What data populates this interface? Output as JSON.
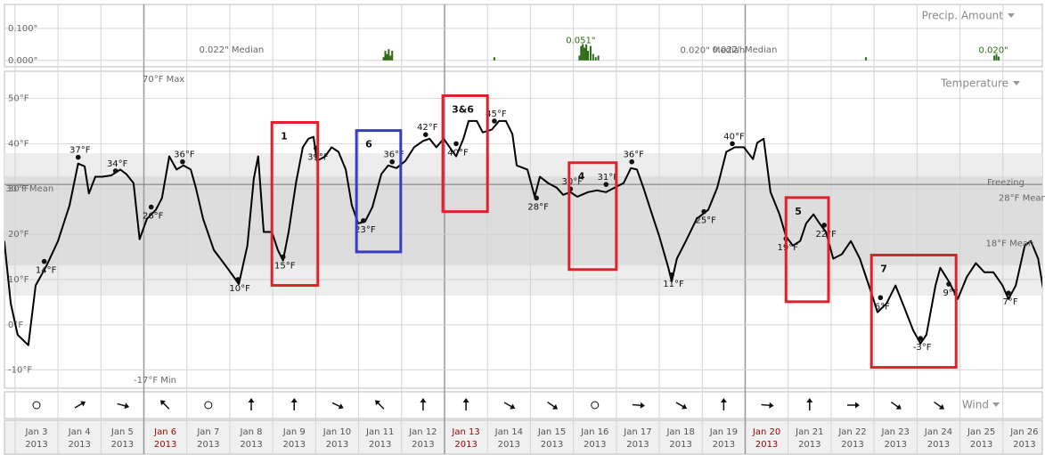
{
  "chart_data": [
    {
      "type": "bar",
      "title": "Precip. Amount",
      "x": [
        11.58,
        11.62,
        11.66,
        11.7,
        11.74,
        11.78,
        14.16,
        16.14,
        16.18,
        16.22,
        16.26,
        16.3,
        16.34,
        16.4,
        16.46,
        16.52,
        16.58,
        22.81,
        25.8,
        25.85,
        25.9
      ],
      "values": [
        0.01,
        0.03,
        0.02,
        0.035,
        0.015,
        0.03,
        0.01,
        0.015,
        0.045,
        0.051,
        0.04,
        0.05,
        0.03,
        0.045,
        0.02,
        0.01,
        0.015,
        0.01,
        0.015,
        0.02,
        0.012
      ],
      "color": "#2d6b12",
      "xlim": [
        2.65,
        26.98
      ],
      "ylim": [
        -0.02,
        0.175
      ],
      "yticks": [
        {
          "value": 0.1,
          "label": "0.100\""
        },
        {
          "value": 0,
          "label": "0.000\""
        }
      ],
      "grid": true,
      "annotations": [
        {
          "x": 8.04,
          "value": 0.022,
          "label": "0.022\" Median"
        },
        {
          "x": 16.17,
          "value": 0.051,
          "label": "0.051\""
        },
        {
          "x": 19.99,
          "value": 0.022,
          "label": "0.022\" Median"
        },
        {
          "x": 19.24,
          "value": 0.02,
          "label": "0.020\" Median"
        },
        {
          "x": 25.78,
          "value": 0.02,
          "label": "0.020\""
        }
      ]
    },
    {
      "type": "line",
      "title": "Temperature",
      "x": [
        2.75,
        2.9,
        3.06,
        3.31,
        3.48,
        3.73,
        4.0,
        4.27,
        4.47,
        4.62,
        4.72,
        4.87,
        5.03,
        5.24,
        5.45,
        5.59,
        5.76,
        5.9,
        6.07,
        6.28,
        6.42,
        6.59,
        6.76,
        6.92,
        7.09,
        7.21,
        7.38,
        7.63,
        7.94,
        8.21,
        8.41,
        8.56,
        8.66,
        8.79,
        8.98,
        9.12,
        9.24,
        9.37,
        9.54,
        9.7,
        9.83,
        9.95,
        10.03,
        10.22,
        10.37,
        10.53,
        10.7,
        10.84,
        10.99,
        11.15,
        11.32,
        11.53,
        11.69,
        11.88,
        12.09,
        12.29,
        12.5,
        12.65,
        12.81,
        12.98,
        13.12,
        13.27,
        13.44,
        13.56,
        13.75,
        13.89,
        14.1,
        14.27,
        14.43,
        14.58,
        14.68,
        14.93,
        15.1,
        15.22,
        15.41,
        15.61,
        15.76,
        15.93,
        16.09,
        16.34,
        16.55,
        16.76,
        16.96,
        17.17,
        17.34,
        17.48,
        17.63,
        17.83,
        18.0,
        18.21,
        18.29,
        18.41,
        18.62,
        18.87,
        19.14,
        19.35,
        19.56,
        19.76,
        19.97,
        20.18,
        20.28,
        20.43,
        20.59,
        20.8,
        20.95,
        21.11,
        21.28,
        21.42,
        21.59,
        21.73,
        21.88,
        22.05,
        22.25,
        22.46,
        22.67,
        22.88,
        23.08,
        23.29,
        23.5,
        23.71,
        23.91,
        24.08,
        24.22,
        24.43,
        24.54,
        24.74,
        24.95,
        25.16,
        25.37,
        25.57,
        25.78,
        25.99,
        26.13,
        26.3,
        26.51,
        26.65,
        26.82,
        26.96
      ],
      "values": [
        18.5,
        4.7,
        -2.2,
        -4.5,
        8.7,
        13,
        18.5,
        26.4,
        35.6,
        35,
        29,
        32.7,
        32.7,
        33,
        34.3,
        33.3,
        31.3,
        18.9,
        23.4,
        25.4,
        28,
        37.2,
        34.3,
        35.2,
        34.3,
        30.3,
        23.4,
        16.5,
        12.6,
        9,
        17.5,
        32.3,
        37.2,
        20.5,
        20.5,
        16.5,
        14.2,
        20.5,
        31.3,
        39.2,
        41.1,
        41.5,
        36.2,
        37.2,
        39.2,
        38.2,
        34.3,
        26.4,
        22.4,
        22.8,
        26,
        33.3,
        35.2,
        34.6,
        36.2,
        39.2,
        40.6,
        41.1,
        39.2,
        41.1,
        39.2,
        37.2,
        41.1,
        45,
        45,
        42.5,
        43.1,
        45,
        45,
        42.1,
        35.2,
        34.3,
        28.3,
        32.7,
        31.3,
        30.3,
        28.7,
        29.3,
        28.3,
        29.3,
        29.7,
        29.3,
        30.3,
        31.3,
        34.6,
        34.3,
        30.3,
        24.4,
        19.5,
        12.6,
        9.6,
        14.6,
        18.5,
        23.4,
        25.4,
        30.3,
        38.2,
        39.2,
        39.2,
        36.6,
        40.2,
        41.1,
        29.3,
        24.4,
        19.5,
        17.5,
        18.5,
        22.4,
        24.4,
        22.4,
        20.5,
        14.6,
        15.6,
        18.5,
        14.6,
        8.7,
        2.8,
        4.7,
        8.7,
        3.7,
        -1.2,
        -4.1,
        -2.2,
        8.7,
        12.6,
        9.6,
        5.7,
        10.6,
        13.6,
        11.6,
        11.6,
        8.7,
        5.7,
        8.7,
        17.5,
        18.5,
        14.6,
        6.7
      ],
      "color": "#000000",
      "xlim": [
        2.65,
        26.98
      ],
      "ylim": [
        -14,
        56
      ],
      "yticks": [
        {
          "value": 50,
          "label": "50°F"
        },
        {
          "value": 40,
          "label": "40°F"
        },
        {
          "value": 30,
          "label": "30°F"
        },
        {
          "value": 20,
          "label": "20°F"
        },
        {
          "value": 10,
          "label": "10°F"
        },
        {
          "value": 0,
          "label": "0°F"
        },
        {
          "value": -10,
          "label": "-10°F"
        }
      ],
      "grid": true,
      "point_labels": [
        {
          "x": 3.68,
          "value": 14,
          "label": "14°F"
        },
        {
          "x": 4.47,
          "value": 37,
          "label": "37°F"
        },
        {
          "x": 5.34,
          "value": 34,
          "label": "34°F"
        },
        {
          "x": 6.17,
          "value": 26,
          "label": "26°F"
        },
        {
          "x": 6.9,
          "value": 36,
          "label": "36°F"
        },
        {
          "x": 8.19,
          "value": 10,
          "label": "10°F"
        },
        {
          "x": 9.24,
          "value": 15,
          "label": "15°F"
        },
        {
          "x": 10.01,
          "value": 39,
          "label": "39°F"
        },
        {
          "x": 11.11,
          "value": 23,
          "label": "23°F"
        },
        {
          "x": 11.78,
          "value": 36,
          "label": "36°F"
        },
        {
          "x": 12.56,
          "value": 42,
          "label": "42°F"
        },
        {
          "x": 13.27,
          "value": 40,
          "label": "40°F"
        },
        {
          "x": 14.16,
          "value": 45,
          "label": "45°F"
        },
        {
          "x": 15.14,
          "value": 28,
          "label": "28°F"
        },
        {
          "x": 15.93,
          "value": 30,
          "label": "30°F"
        },
        {
          "x": 16.76,
          "value": 31,
          "label": "31°F"
        },
        {
          "x": 17.36,
          "value": 36,
          "label": "36°F"
        },
        {
          "x": 18.29,
          "value": 11,
          "label": "11°F"
        },
        {
          "x": 19.04,
          "value": 25,
          "label": "25°F"
        },
        {
          "x": 19.7,
          "value": 40,
          "label": "40°F"
        },
        {
          "x": 20.95,
          "value": 19,
          "label": "19°F"
        },
        {
          "x": 21.84,
          "value": 22,
          "label": "22°F"
        },
        {
          "x": 23.15,
          "value": 6,
          "label": "6°F"
        },
        {
          "x": 24.08,
          "value": -3,
          "label": "-3°F"
        },
        {
          "x": 24.74,
          "value": 9,
          "label": "9°F"
        },
        {
          "x": 26.13,
          "value": 7,
          "label": "7°F"
        }
      ],
      "means": [
        {
          "x": 2.78,
          "value": 30,
          "label": "30°F Mean"
        },
        {
          "x": 25.9,
          "value": 28,
          "label": "28°F Mean"
        },
        {
          "x": 25.6,
          "value": 18,
          "label": "18°F Mean"
        }
      ],
      "max_label": "70°F Max",
      "min_label": "-17°F Min",
      "freezing": {
        "label": "Freezing",
        "value": 31
      },
      "boxes": [
        {
          "label": "1",
          "color": "#e0202a",
          "x": [
            8.98,
            10.05
          ],
          "y": [
            44.7,
            8.7
          ]
        },
        {
          "label": "6",
          "color": "#3a3ac8",
          "x": [
            10.95,
            11.98
          ],
          "y": [
            42.9,
            16.1
          ]
        },
        {
          "label": "3&6",
          "color": "#e0202a",
          "x": [
            12.96,
            14.0
          ],
          "y": [
            50.6,
            25
          ]
        },
        {
          "label": "4",
          "color": "#e0202a",
          "x": [
            15.9,
            17.0
          ],
          "y": [
            35.8,
            12.2
          ]
        },
        {
          "label": "5",
          "color": "#e0202a",
          "x": [
            20.95,
            21.94
          ],
          "y": [
            28.1,
            5.1
          ]
        },
        {
          "label": "7",
          "color": "#e0202a",
          "x": [
            22.94,
            24.91
          ],
          "y": [
            15.4,
            -9.4
          ]
        }
      ]
    }
  ],
  "date_axis": {
    "year": "2013",
    "ticks": [
      {
        "value": 3.5,
        "label": "Jan 3"
      },
      {
        "value": 4.5,
        "label": "Jan 4"
      },
      {
        "value": 5.5,
        "label": "Jan 5"
      },
      {
        "value": 6.5,
        "label": "Jan 6",
        "color": "#990000"
      },
      {
        "value": 7.5,
        "label": "Jan 7"
      },
      {
        "value": 8.5,
        "label": "Jan 8"
      },
      {
        "value": 9.5,
        "label": "Jan 9"
      },
      {
        "value": 10.5,
        "label": "Jan 10"
      },
      {
        "value": 11.5,
        "label": "Jan 11"
      },
      {
        "value": 12.5,
        "label": "Jan 12"
      },
      {
        "value": 13.5,
        "label": "Jan 13",
        "color": "#990000"
      },
      {
        "value": 14.5,
        "label": "Jan 14"
      },
      {
        "value": 15.5,
        "label": "Jan 15"
      },
      {
        "value": 16.5,
        "label": "Jan 16"
      },
      {
        "value": 17.5,
        "label": "Jan 17"
      },
      {
        "value": 18.5,
        "label": "Jan 18"
      },
      {
        "value": 19.5,
        "label": "Jan 19"
      },
      {
        "value": 20.5,
        "label": "Jan 20",
        "color": "#990000"
      },
      {
        "value": 21.5,
        "label": "Jan 21"
      },
      {
        "value": 22.5,
        "label": "Jan 22"
      },
      {
        "value": 23.5,
        "label": "Jan 23"
      },
      {
        "value": 24.5,
        "label": "Jan 24"
      },
      {
        "value": 25.5,
        "label": "Jan 25"
      },
      {
        "value": 26.5,
        "label": "Jan 26"
      }
    ]
  },
  "wind": {
    "title": "Wind",
    "headings": [
      null,
      60,
      105,
      315,
      null,
      0,
      0,
      115,
      315,
      0,
      0,
      120,
      125,
      null,
      95,
      120,
      0,
      95,
      0,
      90,
      125,
      125
    ]
  }
}
